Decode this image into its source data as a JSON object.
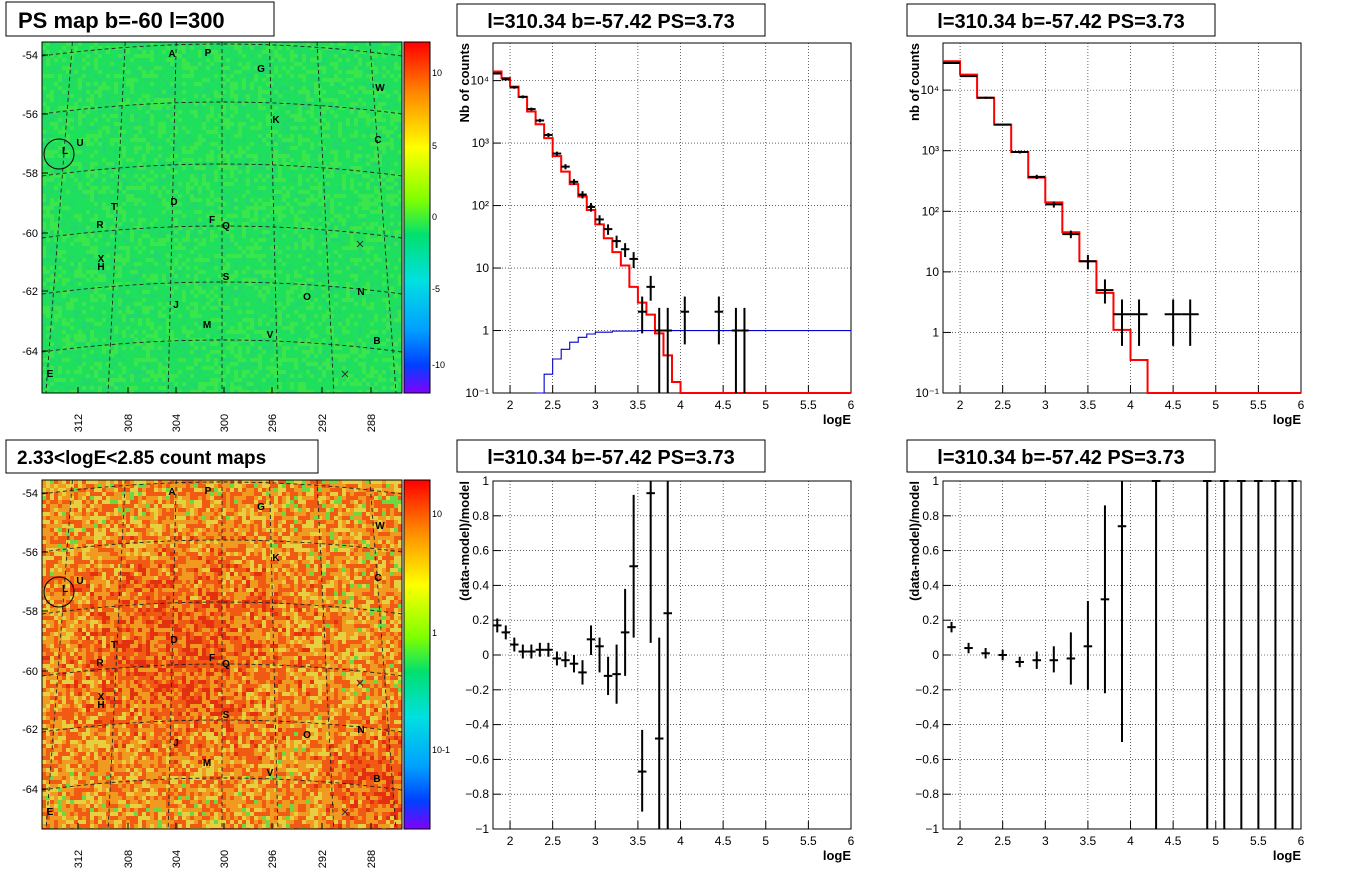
{
  "colors": {
    "hist_red": "#ff0000",
    "data_black": "#000000",
    "curve_blue": "#0000cc",
    "grid": "#000000",
    "map_green": "#1ee05a",
    "map_red": "#e63a12"
  },
  "map_common": {
    "ylabels": [
      "-54",
      "-56",
      "-58",
      "-60",
      "-62",
      "-64"
    ],
    "xlabels": [
      "312",
      "308",
      "304",
      "300",
      "296",
      "292",
      "288"
    ],
    "letters": [
      "A",
      "P",
      "G",
      "W",
      "K",
      "C",
      "L",
      "U",
      "D",
      "T",
      "F",
      "Q",
      "R",
      "X",
      "H",
      "S",
      "O",
      "N",
      "J",
      "M",
      "V",
      "B",
      "E"
    ]
  },
  "panels": {
    "psmap": {
      "title": "PS map b=-60 l=300",
      "colorbar_ticks": [
        "10",
        "5",
        "0",
        "-5",
        "-10"
      ]
    },
    "countmap": {
      "title": "2.33<logE<2.85 count maps",
      "colorbar_ticks": [
        "10",
        "1",
        "10-1"
      ]
    }
  },
  "chart_data": [
    {
      "id": "spectrum_fine",
      "type": "line",
      "title": "l=310.34 b=-57.42 PS=3.73",
      "xlabel": "logE",
      "ylabel": "Nb of counts",
      "xlim": [
        1.8,
        6
      ],
      "ylim": [
        0.1,
        40000
      ],
      "log_y": true,
      "grid": true,
      "xticks": [
        "2",
        "2.5",
        "3",
        "3.5",
        "4",
        "4.5",
        "5",
        "5.5",
        "6"
      ],
      "yticks": [
        {
          "v": 10000,
          "t": "10⁴"
        },
        {
          "v": 1000,
          "t": "10³"
        },
        {
          "v": 100,
          "t": "10²"
        },
        {
          "v": 10,
          "t": "10"
        },
        {
          "v": 1,
          "t": "1"
        },
        {
          "v": 0.1,
          "t": "10⁻¹"
        }
      ],
      "model_step": {
        "edges": [
          1.8,
          1.9,
          2.0,
          2.1,
          2.2,
          2.3,
          2.4,
          2.5,
          2.6,
          2.7,
          2.8,
          2.9,
          3.0,
          3.1,
          3.2,
          3.3,
          3.4,
          3.5,
          3.6,
          3.7,
          3.8,
          3.9,
          4.0,
          4.1,
          4.2,
          6.0
        ],
        "values": [
          14000,
          11000,
          8000,
          5500,
          3200,
          2000,
          1200,
          620,
          350,
          220,
          140,
          85,
          50,
          30,
          18,
          11,
          5,
          2.8,
          1.8,
          0.9,
          0.4,
          0.15,
          0.1,
          0.1,
          0.1
        ]
      },
      "background_curve": {
        "x": [
          2.3,
          2.4,
          2.5,
          2.6,
          2.7,
          2.8,
          2.9,
          3.0,
          3.2,
          3.5,
          4.0,
          6.0
        ],
        "y": [
          0.1,
          0.2,
          0.35,
          0.5,
          0.65,
          0.78,
          0.88,
          0.94,
          0.98,
          1.0,
          1.0,
          1.0
        ]
      },
      "points": [
        {
          "x": 1.85,
          "y": 13000,
          "lo": 12500,
          "hi": 13500
        },
        {
          "x": 1.95,
          "y": 10500,
          "lo": 10000,
          "hi": 11000
        },
        {
          "x": 2.05,
          "y": 7800,
          "lo": 7400,
          "hi": 8200
        },
        {
          "x": 2.15,
          "y": 5500,
          "lo": 5200,
          "hi": 5800
        },
        {
          "x": 2.25,
          "y": 3500,
          "lo": 3300,
          "hi": 3700
        },
        {
          "x": 2.35,
          "y": 2300,
          "lo": 2150,
          "hi": 2450
        },
        {
          "x": 2.45,
          "y": 1350,
          "lo": 1250,
          "hi": 1450
        },
        {
          "x": 2.55,
          "y": 680,
          "lo": 630,
          "hi": 730
        },
        {
          "x": 2.65,
          "y": 420,
          "lo": 380,
          "hi": 460
        },
        {
          "x": 2.75,
          "y": 240,
          "lo": 215,
          "hi": 265
        },
        {
          "x": 2.85,
          "y": 150,
          "lo": 130,
          "hi": 170
        },
        {
          "x": 2.95,
          "y": 95,
          "lo": 80,
          "hi": 110
        },
        {
          "x": 3.05,
          "y": 60,
          "lo": 50,
          "hi": 70
        },
        {
          "x": 3.15,
          "y": 42,
          "lo": 34,
          "hi": 50
        },
        {
          "x": 3.25,
          "y": 27,
          "lo": 21,
          "hi": 33
        },
        {
          "x": 3.35,
          "y": 20,
          "lo": 15,
          "hi": 25
        },
        {
          "x": 3.45,
          "y": 14,
          "lo": 10,
          "hi": 18
        },
        {
          "x": 3.55,
          "y": 2,
          "lo": 0.9,
          "hi": 3.5
        },
        {
          "x": 3.65,
          "y": 5,
          "lo": 3,
          "hi": 7.5
        },
        {
          "x": 3.75,
          "y": 1,
          "lo": 0.1,
          "hi": 2.3
        },
        {
          "x": 3.85,
          "y": 1,
          "lo": 0.1,
          "hi": 2.3
        },
        {
          "x": 4.05,
          "y": 2,
          "lo": 0.6,
          "hi": 3.5
        },
        {
          "x": 4.45,
          "y": 2,
          "lo": 0.6,
          "hi": 3.5
        },
        {
          "x": 4.65,
          "y": 1,
          "lo": 0.1,
          "hi": 2.3
        },
        {
          "x": 4.75,
          "y": 1,
          "lo": 0.1,
          "hi": 2.3
        }
      ]
    },
    {
      "id": "spectrum_coarse",
      "type": "line",
      "title": "l=310.34 b=-57.42 PS=3.73",
      "xlabel": "logE",
      "ylabel": "nb of counts",
      "xlim": [
        1.8,
        6
      ],
      "ylim": [
        0.1,
        60000
      ],
      "log_y": true,
      "grid": true,
      "xticks": [
        "2",
        "2.5",
        "3",
        "3.5",
        "4",
        "4.5",
        "5",
        "5.5",
        "6"
      ],
      "yticks": [
        {
          "v": 10000,
          "t": "10⁴"
        },
        {
          "v": 1000,
          "t": "10³"
        },
        {
          "v": 100,
          "t": "10²"
        },
        {
          "v": 10,
          "t": "10"
        },
        {
          "v": 1,
          "t": "1"
        },
        {
          "v": 0.1,
          "t": "10⁻¹"
        }
      ],
      "model_step": {
        "edges": [
          1.8,
          2.0,
          2.2,
          2.4,
          2.6,
          2.8,
          3.0,
          3.2,
          3.4,
          3.6,
          3.8,
          4.0,
          4.2,
          6.0
        ],
        "values": [
          30000,
          18000,
          7500,
          2700,
          950,
          360,
          140,
          45,
          15,
          4.5,
          1.1,
          0.35,
          0.1
        ]
      },
      "points": [
        {
          "x": 1.9,
          "y": 28000,
          "lo": 27000,
          "hi": 29000
        },
        {
          "x": 2.1,
          "y": 17000,
          "lo": 16500,
          "hi": 17500
        },
        {
          "x": 2.3,
          "y": 7500,
          "lo": 7200,
          "hi": 7800
        },
        {
          "x": 2.5,
          "y": 2700,
          "lo": 2600,
          "hi": 2800
        },
        {
          "x": 2.7,
          "y": 950,
          "lo": 900,
          "hi": 1000
        },
        {
          "x": 2.9,
          "y": 370,
          "lo": 340,
          "hi": 400
        },
        {
          "x": 3.1,
          "y": 130,
          "lo": 115,
          "hi": 145
        },
        {
          "x": 3.3,
          "y": 42,
          "lo": 36,
          "hi": 48
        },
        {
          "x": 3.5,
          "y": 15,
          "lo": 11,
          "hi": 19
        },
        {
          "x": 3.7,
          "y": 5,
          "lo": 3,
          "hi": 7.5
        },
        {
          "x": 3.9,
          "y": 2,
          "lo": 0.6,
          "hi": 3.5
        },
        {
          "x": 4.1,
          "y": 2,
          "lo": 0.6,
          "hi": 3.5
        },
        {
          "x": 4.5,
          "y": 2,
          "lo": 0.6,
          "hi": 3.5
        },
        {
          "x": 4.7,
          "y": 2,
          "lo": 0.6,
          "hi": 3.5
        }
      ]
    },
    {
      "id": "residual_fine",
      "type": "scatter",
      "title": "l=310.34 b=-57.42 PS=3.73",
      "xlabel": "logE",
      "ylabel": "(data-model)/model",
      "xlim": [
        1.8,
        6
      ],
      "ylim": [
        -1,
        1
      ],
      "log_y": false,
      "grid": true,
      "xticks": [
        "2",
        "2.5",
        "3",
        "3.5",
        "4",
        "4.5",
        "5",
        "5.5",
        "6"
      ],
      "yticks": [
        "1",
        "0.8",
        "0.6",
        "0.4",
        "0.2",
        "0",
        "-0.2",
        "-0.4",
        "-0.6",
        "-0.8",
        "-1"
      ],
      "points": [
        {
          "x": 1.85,
          "y": 0.17,
          "lo": 0.13,
          "hi": 0.21
        },
        {
          "x": 1.95,
          "y": 0.13,
          "lo": 0.09,
          "hi": 0.17
        },
        {
          "x": 2.05,
          "y": 0.06,
          "lo": 0.02,
          "hi": 0.1
        },
        {
          "x": 2.15,
          "y": 0.02,
          "lo": -0.02,
          "hi": 0.06
        },
        {
          "x": 2.25,
          "y": 0.02,
          "lo": -0.02,
          "hi": 0.06
        },
        {
          "x": 2.35,
          "y": 0.03,
          "lo": -0.01,
          "hi": 0.07
        },
        {
          "x": 2.45,
          "y": 0.03,
          "lo": -0.01,
          "hi": 0.07
        },
        {
          "x": 2.55,
          "y": -0.02,
          "lo": -0.06,
          "hi": 0.02
        },
        {
          "x": 2.65,
          "y": -0.03,
          "lo": -0.07,
          "hi": 0.02
        },
        {
          "x": 2.75,
          "y": -0.05,
          "lo": -0.1,
          "hi": 0.0
        },
        {
          "x": 2.85,
          "y": -0.1,
          "lo": -0.17,
          "hi": -0.03
        },
        {
          "x": 2.95,
          "y": 0.09,
          "lo": 0.0,
          "hi": 0.17
        },
        {
          "x": 3.05,
          "y": 0.05,
          "lo": -0.1,
          "hi": 0.1
        },
        {
          "x": 3.15,
          "y": -0.12,
          "lo": -0.23,
          "hi": -0.01
        },
        {
          "x": 3.25,
          "y": -0.11,
          "lo": -0.28,
          "hi": 0.06
        },
        {
          "x": 3.35,
          "y": 0.13,
          "lo": -0.12,
          "hi": 0.38
        },
        {
          "x": 3.45,
          "y": 0.51,
          "lo": 0.1,
          "hi": 0.92
        },
        {
          "x": 3.55,
          "y": -0.67,
          "lo": -0.9,
          "hi": -0.43
        },
        {
          "x": 3.65,
          "y": 0.93,
          "lo": 0.07,
          "hi": 1.0
        },
        {
          "x": 3.75,
          "y": -0.48,
          "lo": -1.0,
          "hi": 0.1
        },
        {
          "x": 3.85,
          "y": 0.24,
          "lo": -1.0,
          "hi": 1.0
        }
      ]
    },
    {
      "id": "residual_coarse",
      "type": "scatter",
      "title": "l=310.34 b=-57.42 PS=3.73",
      "xlabel": "logE",
      "ylabel": "(data-model)/model",
      "xlim": [
        1.8,
        6
      ],
      "ylim": [
        -1,
        1
      ],
      "log_y": false,
      "grid": true,
      "xticks": [
        "2",
        "2.5",
        "3",
        "3.5",
        "4",
        "4.5",
        "5",
        "5.5",
        "6"
      ],
      "yticks": [
        "1",
        "0.8",
        "0.6",
        "0.4",
        "0.2",
        "0",
        "-0.2",
        "-0.4",
        "-0.6",
        "-0.8",
        "-1"
      ],
      "points": [
        {
          "x": 1.9,
          "y": 0.16,
          "lo": 0.13,
          "hi": 0.19
        },
        {
          "x": 2.1,
          "y": 0.04,
          "lo": 0.01,
          "hi": 0.07
        },
        {
          "x": 2.3,
          "y": 0.01,
          "lo": -0.02,
          "hi": 0.04
        },
        {
          "x": 2.5,
          "y": 0.0,
          "lo": -0.03,
          "hi": 0.03
        },
        {
          "x": 2.7,
          "y": -0.04,
          "lo": -0.07,
          "hi": -0.01
        },
        {
          "x": 2.9,
          "y": -0.03,
          "lo": -0.08,
          "hi": 0.02
        },
        {
          "x": 3.1,
          "y": -0.03,
          "lo": -0.1,
          "hi": 0.05
        },
        {
          "x": 3.3,
          "y": -0.02,
          "lo": -0.17,
          "hi": 0.13
        },
        {
          "x": 3.5,
          "y": 0.05,
          "lo": -0.2,
          "hi": 0.31
        },
        {
          "x": 3.7,
          "y": 0.32,
          "lo": -0.22,
          "hi": 0.86
        },
        {
          "x": 3.9,
          "y": 0.74,
          "lo": -0.5,
          "hi": 1.0
        },
        {
          "x": 4.3,
          "y": 1.0,
          "lo": -1.0,
          "hi": 1.0
        },
        {
          "x": 4.9,
          "y": 1.0,
          "lo": -1.0,
          "hi": 1.0
        },
        {
          "x": 5.1,
          "y": 1.0,
          "lo": -1.0,
          "hi": 1.0
        },
        {
          "x": 5.3,
          "y": 1.0,
          "lo": -1.0,
          "hi": 1.0
        },
        {
          "x": 5.5,
          "y": 1.0,
          "lo": -1.0,
          "hi": 1.0
        },
        {
          "x": 5.7,
          "y": 1.0,
          "lo": -1.0,
          "hi": 1.0
        },
        {
          "x": 5.9,
          "y": 1.0,
          "lo": -1.0,
          "hi": 1.0
        }
      ]
    }
  ]
}
